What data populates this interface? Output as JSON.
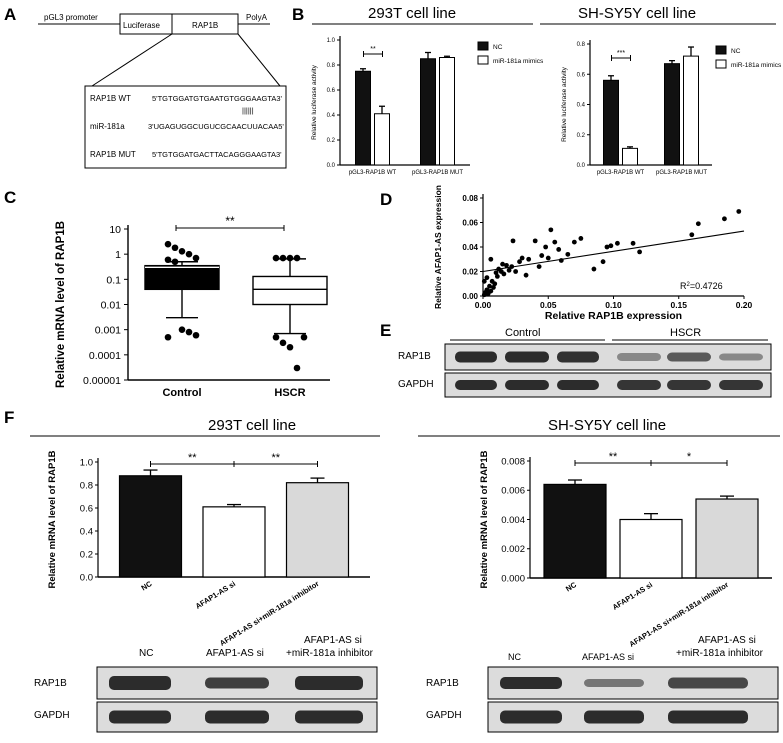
{
  "panel_labels": {
    "A": "A",
    "B": "B",
    "C": "C",
    "D": "D",
    "E": "E",
    "F": "F"
  },
  "panel_a": {
    "promoter": "pGL3 promoter",
    "luciferase": "Luciferase",
    "gene": "RAP1B",
    "polya": "PolyA",
    "rows": [
      {
        "label": "RAP1B WT",
        "seq": "5'TGTGGATGTGAATGTGGGAAGTA3'"
      },
      {
        "label": "miR-181a",
        "seq": "3'UGAGUGGCUGUCGCAACUUACAA5'"
      },
      {
        "label": "RAP1B MUT",
        "seq": "5'TGTGGATGACTTACAGGGAAGTA3'"
      }
    ],
    "pairing": "||||||"
  },
  "panel_b_titles": {
    "left": "293T cell line",
    "right": "SH-SY5Y cell line"
  },
  "panel_f_titles": {
    "left": "293T cell line",
    "right": "SH-SY5Y cell line"
  },
  "western_e": {
    "header_control": "Control",
    "header_hscr": "HSCR",
    "rows": [
      "RAP1B",
      "GAPDH"
    ]
  },
  "western_f_left": {
    "columns": [
      "NC",
      "AFAP1-AS si",
      "AFAP1-AS si",
      "+miR-181a inhibitor"
    ],
    "rows": [
      "RAP1B",
      "GAPDH"
    ]
  },
  "western_f_right": {
    "columns": [
      "NC",
      "AFAP1-AS si",
      "AFAP1-AS si",
      "+miR-181a inhibitor"
    ],
    "rows": [
      "RAP1B",
      "GAPDH"
    ]
  },
  "colors": {
    "nc": "#111111",
    "mimic": "#ffffff",
    "inhibitor": "#d9d9d9",
    "axis": "#000000"
  },
  "chart_data": [
    {
      "id": "B1",
      "type": "bar",
      "categories": [
        "pGL3-RAP1B WT",
        "pGL3-RAP1B MUT"
      ],
      "series": [
        {
          "name": "NC",
          "values": [
            0.75,
            0.85
          ],
          "errors": [
            0.02,
            0.05
          ]
        },
        {
          "name": "miR-181a mimics",
          "values": [
            0.41,
            0.86
          ],
          "errors": [
            0.06,
            0.01
          ]
        }
      ],
      "ylabel": "Relative luciferase activity",
      "ylim": [
        0,
        1.0
      ],
      "yticks": [
        "0.0",
        "0.2",
        "0.4",
        "0.6",
        "0.8",
        "1.0"
      ],
      "significance": [
        "**"
      ]
    },
    {
      "id": "B2",
      "type": "bar",
      "categories": [
        "pGL3-RAP1B WT",
        "pGL3-RAP1B MUT"
      ],
      "series": [
        {
          "name": "NC",
          "values": [
            0.56,
            0.67
          ],
          "errors": [
            0.03,
            0.02
          ]
        },
        {
          "name": "miR-181a mimics",
          "values": [
            0.11,
            0.72
          ],
          "errors": [
            0.01,
            0.06
          ]
        }
      ],
      "ylabel": "Relative luciferase activity",
      "ylim": [
        0,
        0.8
      ],
      "yticks": [
        "0.0",
        "0.2",
        "0.4",
        "0.6",
        "0.8"
      ],
      "significance": [
        "***"
      ]
    },
    {
      "id": "C",
      "type": "box",
      "categories": [
        "Control",
        "HSCR"
      ],
      "ylabel": "Relative mRNA level of RAP1B",
      "yscale": "log",
      "yticks": [
        "10",
        "1",
        "0.1",
        "0.01",
        "0.001",
        "0.0001",
        "0.00001"
      ],
      "boxes": [
        {
          "name": "Control",
          "whisker_low": 0.003,
          "q1": 0.04,
          "median": 0.3,
          "q3": 0.35,
          "whisker_high": 0.5,
          "outliers": [
            2.5,
            1.8,
            1.3,
            1.0,
            0.7,
            0.6,
            0.5,
            0.001,
            0.0008,
            0.0006,
            0.0005
          ]
        },
        {
          "name": "HSCR",
          "whisker_low": 0.0007,
          "q1": 0.01,
          "median": 0.04,
          "q3": 0.13,
          "whisker_high": 0.65,
          "outliers": [
            0.7,
            0.7,
            0.7,
            0.7,
            0.0005,
            0.0005,
            0.0003,
            0.0002,
            3e-05
          ]
        }
      ],
      "significance": [
        "**"
      ]
    },
    {
      "id": "D",
      "type": "scatter",
      "xlabel": "Relative RAP1B expression",
      "ylabel": "Relative AFAP1-AS expression",
      "xlim": [
        0,
        0.2
      ],
      "ylim": [
        0,
        0.08
      ],
      "xticks": [
        "0.00",
        "0.05",
        "0.10",
        "0.15",
        "0.20"
      ],
      "yticks": [
        "0.00",
        "0.02",
        "0.04",
        "0.06",
        "0.08"
      ],
      "r2_prefix": "R",
      "r2_sup": "2",
      "r2_value": "=0.4726",
      "fit_line": {
        "x": [
          0,
          0.2
        ],
        "y": [
          0.02,
          0.053
        ]
      },
      "points": [
        [
          0.001,
          0.001
        ],
        [
          0.002,
          0.003
        ],
        [
          0.003,
          0.005
        ],
        [
          0.004,
          0.002
        ],
        [
          0.005,
          0.008
        ],
        [
          0.006,
          0.004
        ],
        [
          0.007,
          0.012
        ],
        [
          0.008,
          0.007
        ],
        [
          0.009,
          0.01
        ],
        [
          0.01,
          0.019
        ],
        [
          0.011,
          0.016
        ],
        [
          0.012,
          0.022
        ],
        [
          0.014,
          0.02
        ],
        [
          0.015,
          0.026
        ],
        [
          0.016,
          0.018
        ],
        [
          0.018,
          0.025
        ],
        [
          0.02,
          0.021
        ],
        [
          0.022,
          0.024
        ],
        [
          0.023,
          0.045
        ],
        [
          0.025,
          0.02
        ],
        [
          0.028,
          0.028
        ],
        [
          0.03,
          0.031
        ],
        [
          0.033,
          0.017
        ],
        [
          0.035,
          0.03
        ],
        [
          0.04,
          0.045
        ],
        [
          0.043,
          0.024
        ],
        [
          0.045,
          0.033
        ],
        [
          0.048,
          0.04
        ],
        [
          0.05,
          0.031
        ],
        [
          0.052,
          0.054
        ],
        [
          0.055,
          0.044
        ],
        [
          0.058,
          0.038
        ],
        [
          0.06,
          0.029
        ],
        [
          0.065,
          0.034
        ],
        [
          0.07,
          0.044
        ],
        [
          0.075,
          0.047
        ],
        [
          0.085,
          0.022
        ],
        [
          0.092,
          0.028
        ],
        [
          0.095,
          0.04
        ],
        [
          0.098,
          0.041
        ],
        [
          0.103,
          0.043
        ],
        [
          0.115,
          0.043
        ],
        [
          0.12,
          0.036
        ],
        [
          0.16,
          0.05
        ],
        [
          0.165,
          0.059
        ],
        [
          0.185,
          0.063
        ],
        [
          0.196,
          0.069
        ],
        [
          0.003,
          0.015
        ],
        [
          0.006,
          0.03
        ],
        [
          0.001,
          0.012
        ]
      ]
    },
    {
      "id": "F1",
      "type": "bar",
      "categories": [
        "NC",
        "AFAP1-AS si",
        "AFAP1-AS si+miR-181a inhibitor"
      ],
      "values": [
        0.88,
        0.61,
        0.82
      ],
      "errors": [
        0.05,
        0.02,
        0.04
      ],
      "ylabel": "Relative mRNA level of RAP1B",
      "ylim": [
        0,
        1.0
      ],
      "yticks": [
        "0.0",
        "0.2",
        "0.4",
        "0.6",
        "0.8",
        "1.0"
      ],
      "significance": [
        "**",
        "**"
      ]
    },
    {
      "id": "F2",
      "type": "bar",
      "categories": [
        "NC",
        "AFAP1-AS si",
        "AFAP1-AS si+miR-181a inhibitor"
      ],
      "values": [
        0.0064,
        0.004,
        0.0054
      ],
      "errors": [
        0.0003,
        0.0004,
        0.0002
      ],
      "ylabel": "Relative mRNA level of RAP1B",
      "ylim": [
        0,
        0.008
      ],
      "yticks": [
        "0.000",
        "0.002",
        "0.004",
        "0.006",
        "0.008"
      ],
      "significance": [
        "**",
        "*"
      ]
    }
  ]
}
